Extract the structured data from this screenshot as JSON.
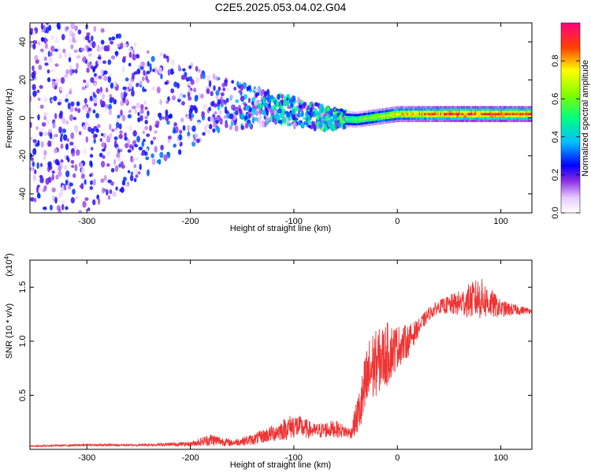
{
  "title": "C2E5.2025.053.04.02.G04",
  "chart_data": [
    {
      "type": "heatmap",
      "xlabel": "Height of straight line (km)",
      "ylabel": "Frequency (Hz)",
      "xlim": [
        -355,
        130
      ],
      "ylim": [
        -50,
        50
      ],
      "x_ticks": [
        -300,
        -200,
        -100,
        0,
        100
      ],
      "y_ticks": [
        -40,
        -20,
        0,
        20,
        40
      ],
      "colorbar": {
        "label": "Normalized spectral amplitude",
        "range": [
          0,
          1
        ],
        "ticks": [
          "0.0",
          "0.2",
          "0.4",
          "0.6",
          "0.8"
        ],
        "tick_values": [
          0.0,
          0.2,
          0.4,
          0.6,
          0.8
        ],
        "colors": [
          "#ffffff",
          "#cc99ff",
          "#6600ff",
          "#0000ff",
          "#00ccff",
          "#00ff66",
          "#ffff00",
          "#ff6600",
          "#ff0000",
          "#ff0066"
        ]
      },
      "description_points": [
        {
          "x": -300,
          "y_center": 0,
          "y_spread": 50,
          "amp": 0.25
        },
        {
          "x": -180,
          "y_center": 8,
          "y_spread": 16,
          "amp": 0.3
        },
        {
          "x": -120,
          "y_center": 5,
          "y_spread": 8,
          "amp": 0.45
        },
        {
          "x": -70,
          "y_center": 0,
          "y_spread": 6,
          "amp": 0.5
        },
        {
          "x": -40,
          "y_center": -1,
          "y_spread": 3,
          "amp": 0.6
        },
        {
          "x": 0,
          "y_center": 2,
          "y_spread": 2,
          "amp": 0.8
        },
        {
          "x": 50,
          "y_center": 2,
          "y_spread": 2,
          "amp": 0.95
        },
        {
          "x": 120,
          "y_center": 2,
          "y_spread": 2,
          "amp": 0.95
        }
      ]
    },
    {
      "type": "line",
      "xlabel": "Height of straight line (km)",
      "ylabel": "SNR (10 * v/v)",
      "multiplier_label": "(x10",
      "multiplier_exp": "4",
      "multiplier_close": ")",
      "xlim": [
        -355,
        130
      ],
      "ylim": [
        0,
        1.75
      ],
      "x_ticks": [
        -300,
        -200,
        -100,
        0,
        100
      ],
      "y_ticks": [
        "0.5",
        "1.0",
        "1.5"
      ],
      "y_tick_values": [
        0.5,
        1.0,
        1.5
      ],
      "color": "#ee3333",
      "x": [
        -355,
        -300,
        -250,
        -200,
        -180,
        -160,
        -140,
        -120,
        -100,
        -80,
        -60,
        -45,
        -35,
        -30,
        -25,
        -20,
        -10,
        0,
        10,
        20,
        30,
        40,
        60,
        80,
        100,
        130
      ],
      "y": [
        0.03,
        0.04,
        0.04,
        0.05,
        0.09,
        0.06,
        0.09,
        0.15,
        0.22,
        0.17,
        0.19,
        0.15,
        0.4,
        0.6,
        0.75,
        0.8,
        0.88,
        0.95,
        1.0,
        1.12,
        1.25,
        1.32,
        1.35,
        1.4,
        1.3,
        1.28
      ],
      "noise": [
        0.005,
        0.01,
        0.01,
        0.02,
        0.06,
        0.03,
        0.05,
        0.08,
        0.12,
        0.07,
        0.08,
        0.05,
        0.25,
        0.35,
        0.35,
        0.3,
        0.3,
        0.2,
        0.15,
        0.08,
        0.06,
        0.06,
        0.12,
        0.2,
        0.08,
        0.02
      ]
    }
  ]
}
